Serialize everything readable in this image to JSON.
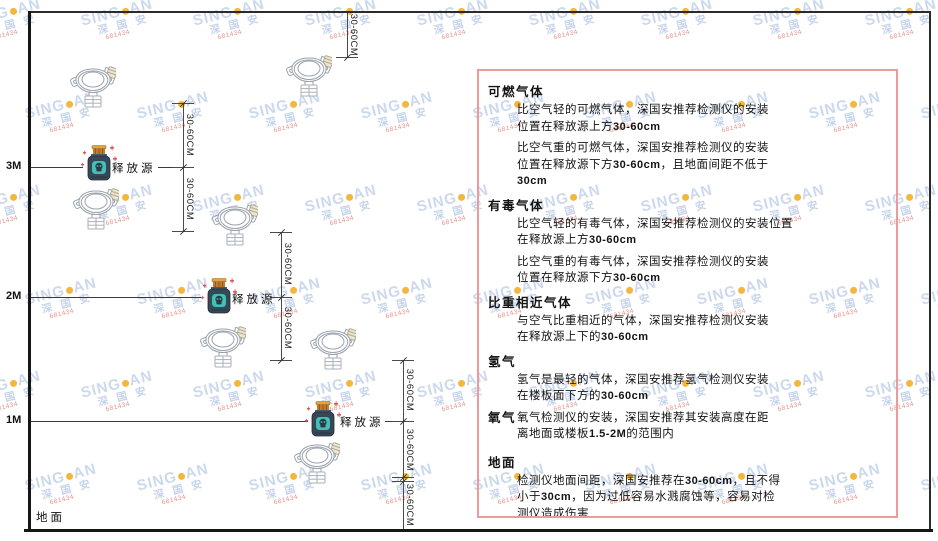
{
  "diagram": {
    "ground_label": "地面",
    "height_labels": [
      "3M",
      "2M",
      "1M"
    ],
    "release_source_label": "释放源",
    "dimension_label": "30-60CM"
  },
  "watermark": {
    "brand_left": "SING",
    "brand_right": "AN",
    "brand_cn": "深 国 安",
    "code": "681434"
  },
  "panel": {
    "sections": [
      {
        "heading": "可燃气体",
        "inline": false,
        "paragraphs": [
          [
            "比空气轻的可燃气体，深国安推荐检测仪的安装",
            "位置在释放源上方30-60cm"
          ],
          [
            "比空气重的可燃气体，深国安推荐检测仪的安装",
            "位置在释放源下方30-60cm，且地面间距不低于",
            "30cm"
          ]
        ]
      },
      {
        "heading": "有毒气体",
        "inline": false,
        "paragraphs": [
          [
            "比空气轻的有毒气体，深国安推荐检测仪的安装位置",
            "在释放源上方30-60cm"
          ],
          [
            "比空气重的有毒气体，深国安推荐检测仪的安装",
            "位置在释放源下方30-60cm"
          ]
        ]
      },
      {
        "heading": "比重相近气体",
        "inline": false,
        "paragraphs": [
          [
            "与空气比重相近的气体，深国安推荐检测仪安装",
            "在释放源上下的30-60cm"
          ]
        ]
      },
      {
        "heading": "氢气",
        "inline": false,
        "paragraphs": [
          [
            "氢气是最轻的气体，深国安推荐氢气检测仪安装",
            "在楼板面下方的30-60cm"
          ]
        ]
      },
      {
        "heading": "氧气",
        "inline": true,
        "paragraphs": [
          [
            "氧气检测仪的安装，深国安推荐其安装高度在距",
            "离地面或楼板1.5-2M的范围内"
          ]
        ]
      },
      {
        "heading": "地面",
        "inline": false,
        "paragraphs": [
          [
            "检测仪地面间距，深国安推荐在30-60cm，且不得",
            "小于30cm，因为过低容易水溅腐蚀等，容易对检",
            "测仪造成伤害"
          ]
        ]
      }
    ]
  }
}
